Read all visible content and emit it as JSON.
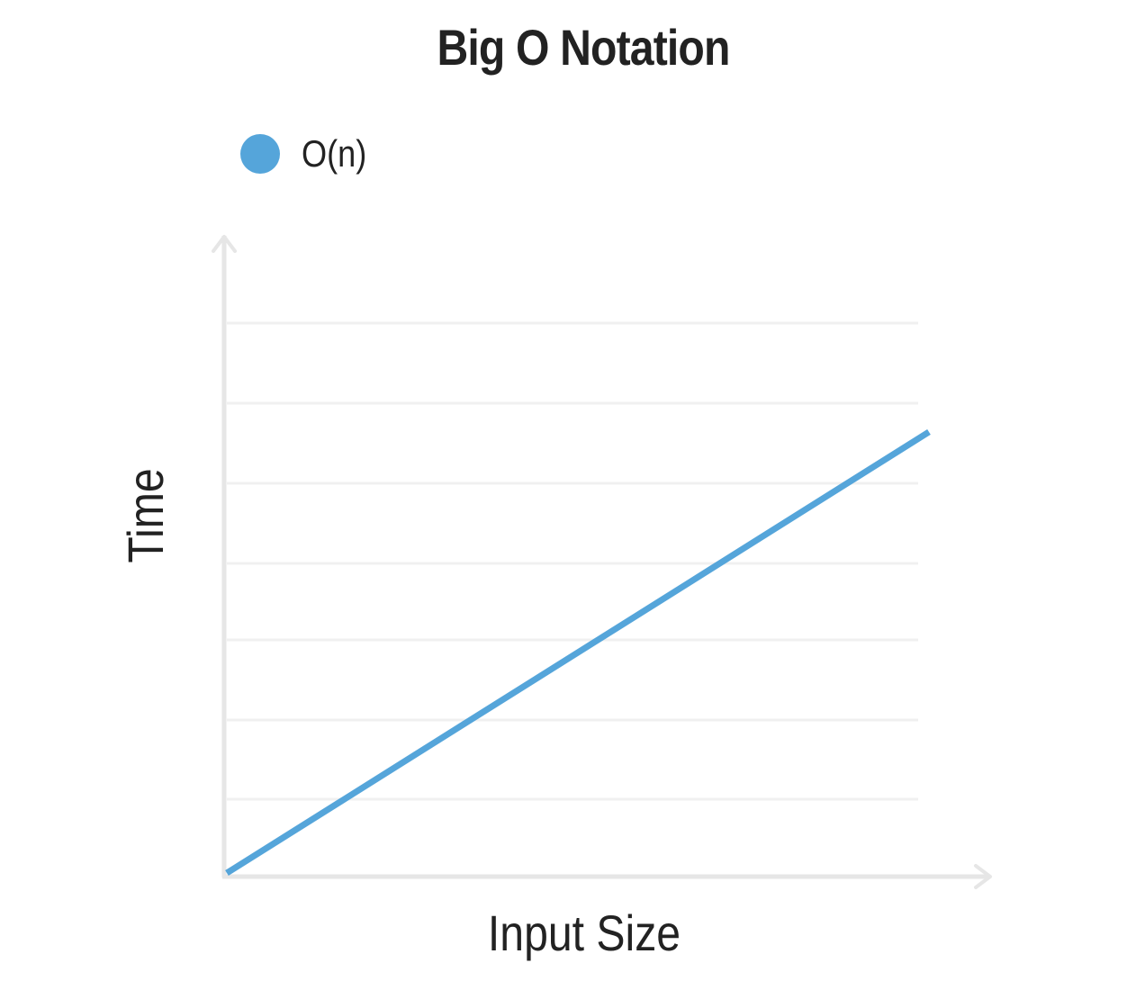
{
  "chart_data": {
    "type": "line",
    "title": "Big O Notation",
    "xlabel": "Input Size",
    "ylabel": "Time",
    "xlim": [
      0,
      1
    ],
    "ylim": [
      0,
      1
    ],
    "x_ticks_shown": false,
    "y_ticks_shown": false,
    "grid": "horizontal",
    "legend_position": "top-left",
    "series": [
      {
        "name": "O(n)",
        "color": "#55a5da",
        "x": [
          0,
          1
        ],
        "y": [
          0,
          0.79
        ]
      }
    ],
    "gridline_values": [
      0.145,
      0.29,
      0.435,
      0.58,
      0.725,
      0.87,
      1.015
    ]
  },
  "colors": {
    "axis": "#e6e6e6",
    "grid": "#f0f0f0",
    "text": "#222222"
  }
}
